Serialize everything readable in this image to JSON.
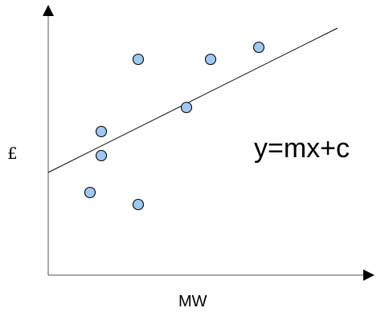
{
  "chart_data": {
    "type": "scatter",
    "title": "",
    "xlabel": "MW",
    "ylabel": "£",
    "annotation": "y=mx+c",
    "xlim": [
      0,
      400
    ],
    "ylim": [
      0,
      310
    ],
    "points": [
      {
        "x": 52,
        "y": 103
      },
      {
        "x": 66,
        "y": 179
      },
      {
        "x": 66,
        "y": 149
      },
      {
        "x": 112,
        "y": 88
      },
      {
        "x": 112,
        "y": 269
      },
      {
        "x": 172,
        "y": 209
      },
      {
        "x": 202,
        "y": 269
      },
      {
        "x": 262,
        "y": 284
      }
    ],
    "fit_line": {
      "x": [
        0,
        360
      ],
      "y": [
        128,
        308
      ]
    },
    "grid": false,
    "legend": "none"
  }
}
